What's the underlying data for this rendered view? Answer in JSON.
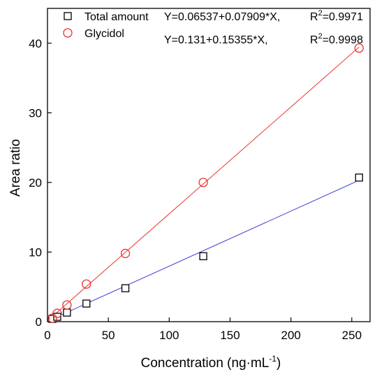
{
  "chart_data": {
    "type": "scatter",
    "xlabel": "Concentration (ng·mL",
    "xlabel_sup": "-1",
    "xlabel_end": ")",
    "ylabel": "Area ratio",
    "xlim": [
      0,
      265
    ],
    "ylim": [
      0,
      45
    ],
    "x_ticks": [
      0,
      50,
      100,
      150,
      200,
      250
    ],
    "y_ticks": [
      0,
      10,
      20,
      30,
      40
    ],
    "grid": false,
    "legend_position": "top-left",
    "series": [
      {
        "name": "Total amount",
        "marker": "square",
        "marker_color": "#000000",
        "line_color": "#3b3bd6",
        "equation": "Y=0.06537+0.07909*X,",
        "r2_prefix": "R",
        "r2_sup": "2",
        "r2_value": "=0.9971",
        "intercept": 0.06537,
        "slope": 0.07909,
        "points": [
          {
            "x": 4,
            "y": 0.4
          },
          {
            "x": 8,
            "y": 0.7
          },
          {
            "x": 16,
            "y": 1.3
          },
          {
            "x": 32,
            "y": 2.6
          },
          {
            "x": 64,
            "y": 4.8
          },
          {
            "x": 128,
            "y": 9.4
          },
          {
            "x": 256,
            "y": 20.7
          }
        ]
      },
      {
        "name": "Glycidol",
        "marker": "circle",
        "marker_color": "#e8322e",
        "line_color": "#e8322e",
        "equation": "Y=0.131+0.15355*X,",
        "r2_prefix": "R",
        "r2_sup": "2",
        "r2_value": "=0.9998",
        "intercept": 0.131,
        "slope": 0.15355,
        "points": [
          {
            "x": 4,
            "y": 0.5
          },
          {
            "x": 8,
            "y": 1.2
          },
          {
            "x": 16,
            "y": 2.4
          },
          {
            "x": 32,
            "y": 5.4
          },
          {
            "x": 64,
            "y": 9.8
          },
          {
            "x": 128,
            "y": 20.0
          },
          {
            "x": 256,
            "y": 39.3
          }
        ]
      }
    ]
  }
}
